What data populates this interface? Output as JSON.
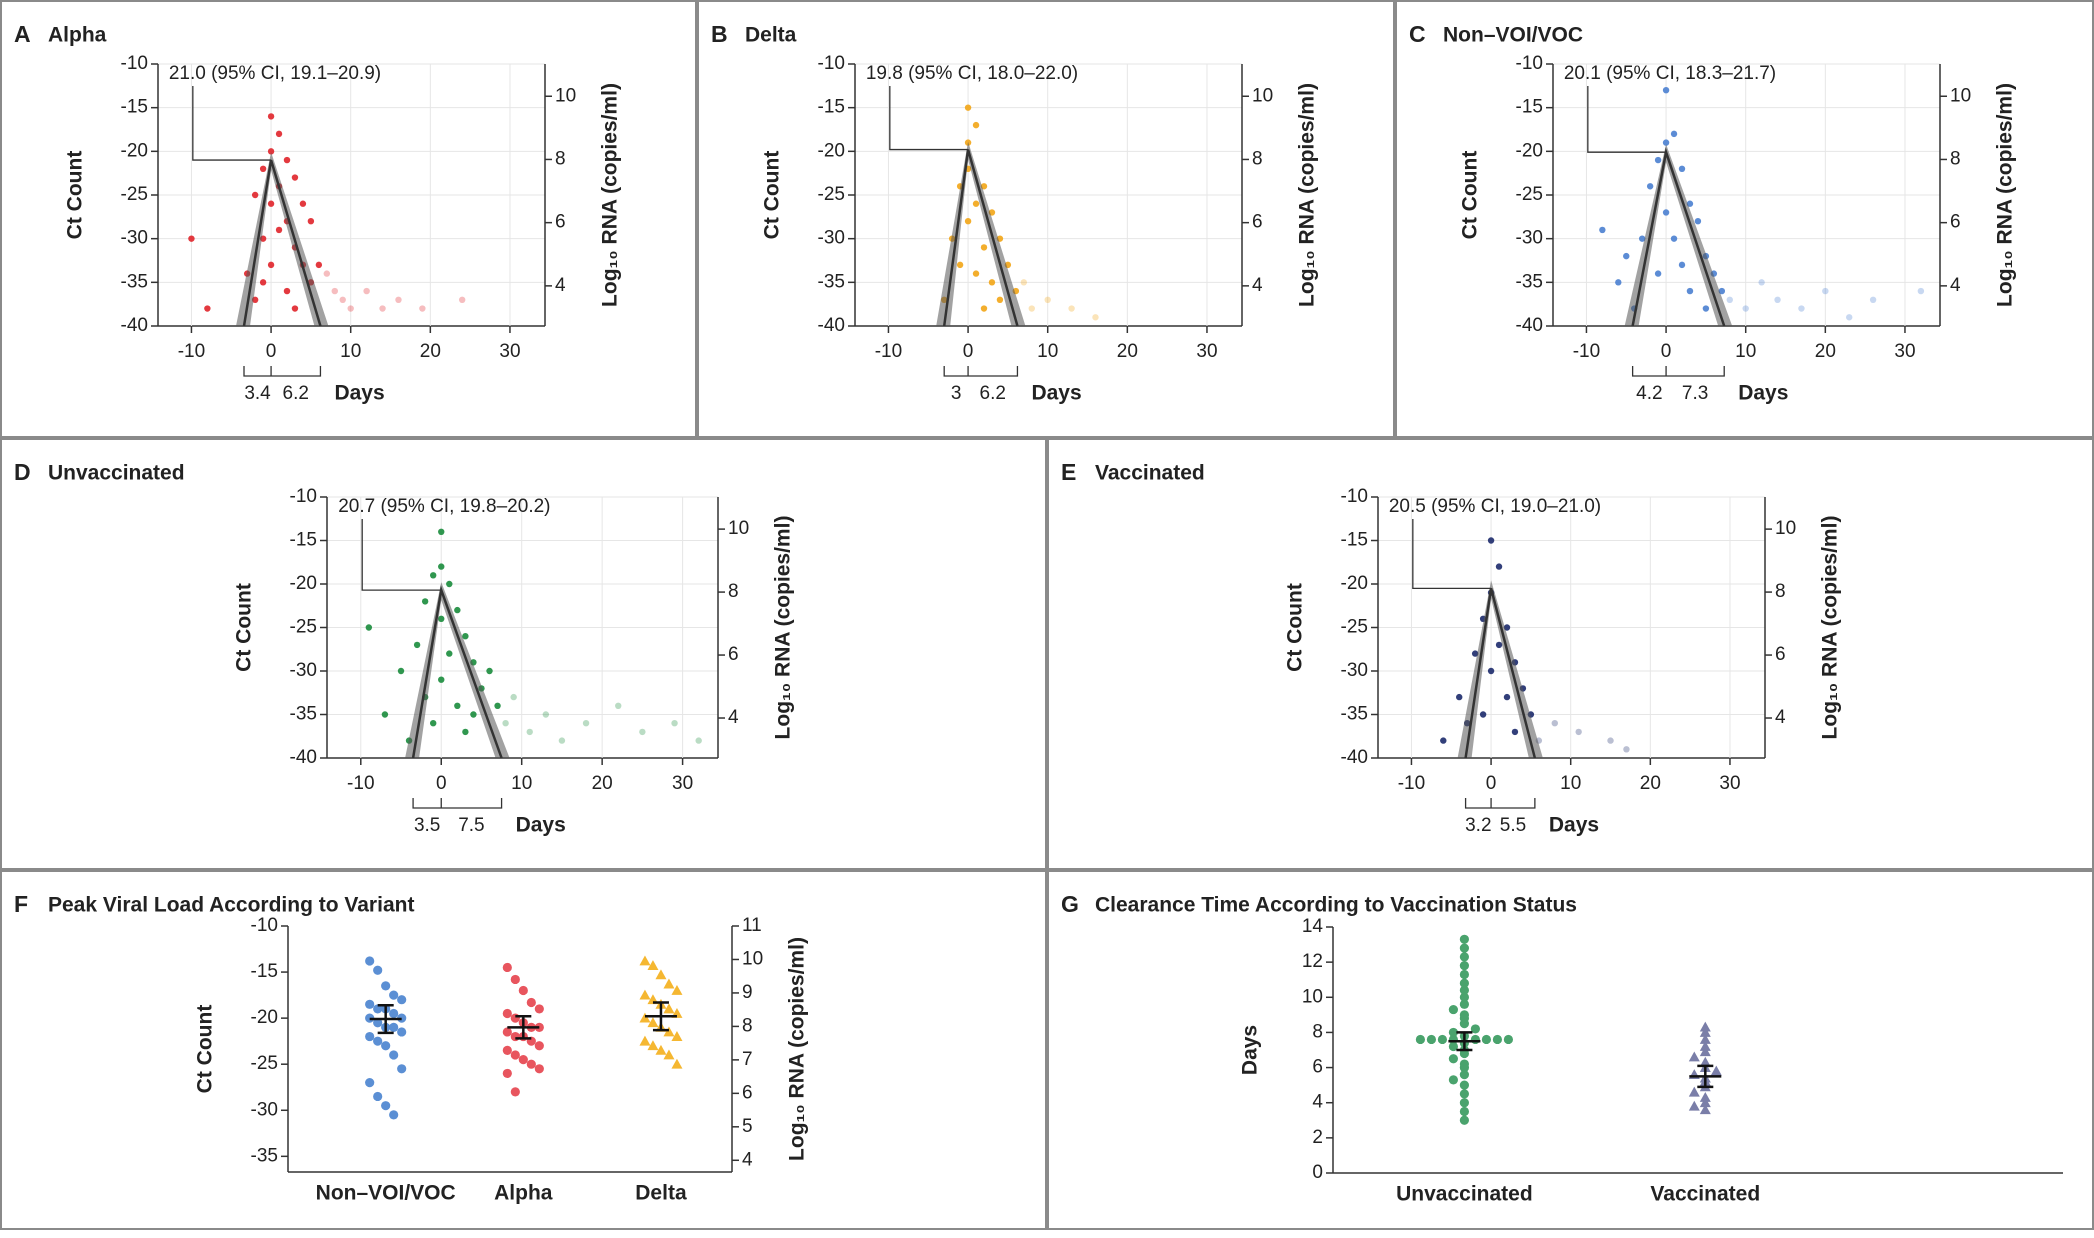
{
  "chart_data": [
    {
      "type": "scatter",
      "panel_label": "A",
      "title": "Alpha",
      "ylabel": "Ct Count",
      "y2label": "Log₁₀ RNA (copies/ml)",
      "xlabel": "Days",
      "annotation": "21.0 (95% CI, 19.1–20.9)",
      "peak_ct": -21.0,
      "proliferation_days": 3.4,
      "clearance_days": 6.2,
      "color": "#e0242a",
      "grid": true,
      "xlim": [
        -14.2,
        34.4
      ],
      "xticks": [
        -10,
        0,
        10,
        20,
        30
      ],
      "ylim": [
        -40,
        -10
      ],
      "yticks": [
        -10,
        -15,
        -20,
        -25,
        -30,
        -35,
        -40
      ],
      "y2lim": [
        2.73,
        11.02
      ],
      "y2ticks": [
        4,
        6,
        8,
        10
      ],
      "x": [
        -10,
        -8,
        -3,
        -2,
        -2,
        -1,
        -1,
        -1,
        0,
        0,
        0,
        0,
        1,
        1,
        1,
        2,
        2,
        2,
        3,
        3,
        3,
        4,
        4,
        5,
        5,
        6,
        7,
        8,
        9,
        10,
        12,
        14,
        16,
        19,
        24
      ],
      "y": [
        -30,
        -38,
        -34,
        -25,
        -37,
        -22,
        -30,
        -35,
        -16,
        -20,
        -26,
        -33,
        -18,
        -24,
        -29,
        -21,
        -28,
        -36,
        -23,
        -31,
        -38,
        -26,
        -33,
        -28,
        -35,
        -33,
        -34,
        -36,
        -37,
        -38,
        -36,
        -38,
        -37,
        -38,
        -37
      ]
    },
    {
      "type": "scatter",
      "panel_label": "B",
      "title": "Delta",
      "ylabel": "Ct Count",
      "y2label": "Log₁₀ RNA (copies/ml)",
      "xlabel": "Days",
      "annotation": "19.8 (95% CI, 18.0–22.0)",
      "peak_ct": -19.8,
      "proliferation_days": 3.0,
      "clearance_days": 6.2,
      "color": "#f2a516",
      "grid": true,
      "xlim": [
        -14.2,
        34.4
      ],
      "xticks": [
        -10,
        0,
        10,
        20,
        30
      ],
      "ylim": [
        -40,
        -10
      ],
      "yticks": [
        -10,
        -15,
        -20,
        -25,
        -30,
        -35,
        -40
      ],
      "y2lim": [
        2.73,
        11.02
      ],
      "y2ticks": [
        4,
        6,
        8,
        10
      ],
      "x": [
        -3,
        -2,
        -1,
        -1,
        0,
        0,
        0,
        0,
        1,
        1,
        1,
        2,
        2,
        2,
        3,
        3,
        4,
        4,
        5,
        6,
        7,
        8,
        10,
        13,
        16
      ],
      "y": [
        -37,
        -30,
        -24,
        -33,
        -15,
        -19,
        -22,
        -28,
        -17,
        -26,
        -34,
        -24,
        -31,
        -38,
        -27,
        -35,
        -30,
        -37,
        -33,
        -36,
        -35,
        -38,
        -37,
        -38,
        -39
      ]
    },
    {
      "type": "scatter",
      "panel_label": "C",
      "title": "Non–VOI/VOC",
      "ylabel": "Ct Count",
      "y2label": "Log₁₀ RNA (copies/ml)",
      "xlabel": "Days",
      "annotation": "20.1 (95% CI, 18.3–21.7)",
      "peak_ct": -20.1,
      "proliferation_days": 4.2,
      "clearance_days": 7.3,
      "color": "#4a7fd0",
      "grid": true,
      "xlim": [
        -14.2,
        34.4
      ],
      "xticks": [
        -10,
        0,
        10,
        20,
        30
      ],
      "ylim": [
        -40,
        -10
      ],
      "yticks": [
        -10,
        -15,
        -20,
        -25,
        -30,
        -35,
        -40
      ],
      "y2lim": [
        2.73,
        11.02
      ],
      "y2ticks": [
        4,
        6,
        8,
        10
      ],
      "x": [
        -8,
        -6,
        -5,
        -4,
        -3,
        -2,
        -1,
        -1,
        0,
        0,
        0,
        1,
        1,
        2,
        2,
        3,
        3,
        4,
        5,
        5,
        6,
        7,
        8,
        10,
        12,
        14,
        17,
        20,
        23,
        26,
        32
      ],
      "y": [
        -29,
        -35,
        -32,
        -38,
        -30,
        -24,
        -21,
        -34,
        -13,
        -19,
        -27,
        -18,
        -30,
        -22,
        -33,
        -26,
        -36,
        -28,
        -32,
        -38,
        -34,
        -36,
        -37,
        -38,
        -35,
        -37,
        -38,
        -36,
        -39,
        -37,
        -36
      ]
    },
    {
      "type": "scatter",
      "panel_label": "D",
      "title": "Unvaccinated",
      "ylabel": "Ct Count",
      "y2label": "Log₁₀ RNA (copies/ml)",
      "xlabel": "Days",
      "annotation": "20.7 (95% CI, 19.8–20.2)",
      "peak_ct": -20.7,
      "proliferation_days": 3.5,
      "clearance_days": 7.5,
      "color": "#1a8c3c",
      "grid": true,
      "xlim": [
        -14.2,
        34.4
      ],
      "xticks": [
        -10,
        0,
        10,
        20,
        30
      ],
      "ylim": [
        -40,
        -10
      ],
      "yticks": [
        -10,
        -15,
        -20,
        -25,
        -30,
        -35,
        -40
      ],
      "y2lim": [
        2.73,
        11.02
      ],
      "y2ticks": [
        4,
        6,
        8,
        10
      ],
      "x": [
        -9,
        -7,
        -5,
        -4,
        -3,
        -2,
        -2,
        -1,
        -1,
        0,
        0,
        0,
        0,
        1,
        1,
        2,
        2,
        3,
        3,
        4,
        4,
        5,
        6,
        7,
        8,
        9,
        11,
        13,
        15,
        18,
        22,
        25,
        29,
        32
      ],
      "y": [
        -25,
        -35,
        -30,
        -38,
        -27,
        -22,
        -33,
        -19,
        -36,
        -14,
        -18,
        -24,
        -31,
        -20,
        -28,
        -23,
        -34,
        -26,
        -37,
        -29,
        -35,
        -32,
        -30,
        -34,
        -36,
        -33,
        -37,
        -35,
        -38,
        -36,
        -34,
        -37,
        -36,
        -38
      ]
    },
    {
      "type": "scatter",
      "panel_label": "E",
      "title": "Vaccinated",
      "ylabel": "Ct Count",
      "y2label": "Log₁₀ RNA (copies/ml)",
      "xlabel": "Days",
      "annotation": "20.5 (95% CI, 19.0–21.0)",
      "peak_ct": -20.5,
      "proliferation_days": 3.2,
      "clearance_days": 5.5,
      "color": "#1c2a6b",
      "grid": true,
      "xlim": [
        -14.2,
        34.4
      ],
      "xticks": [
        -10,
        0,
        10,
        20,
        30
      ],
      "ylim": [
        -40,
        -10
      ],
      "yticks": [
        -10,
        -15,
        -20,
        -25,
        -30,
        -35,
        -40
      ],
      "y2lim": [
        2.73,
        11.02
      ],
      "y2ticks": [
        4,
        6,
        8,
        10
      ],
      "x": [
        -6,
        -4,
        -3,
        -2,
        -1,
        -1,
        0,
        0,
        0,
        1,
        1,
        2,
        2,
        3,
        3,
        4,
        5,
        6,
        8,
        11,
        15,
        17
      ],
      "y": [
        -38,
        -33,
        -36,
        -28,
        -24,
        -35,
        -15,
        -21,
        -30,
        -18,
        -27,
        -25,
        -33,
        -29,
        -37,
        -32,
        -35,
        -38,
        -36,
        -37,
        -38,
        -39
      ]
    },
    {
      "type": "strip",
      "panel_label": "F",
      "title": "Peak Viral Load According to Variant",
      "ylabel": "Ct Count",
      "y2label": "Log₁₀ RNA (copies/ml)",
      "categories": [
        "Non–VOI/VOC",
        "Alpha",
        "Delta"
      ],
      "colors": [
        "#5b8fd4",
        "#e8555e",
        "#f5b731"
      ],
      "markers": [
        "circle",
        "circle",
        "triangle"
      ],
      "ylim": [
        -36.7,
        -10
      ],
      "yticks": [
        -10,
        -15,
        -20,
        -25,
        -30,
        -35
      ],
      "y2lim": [
        3.65,
        11
      ],
      "y2ticks": [
        4,
        5,
        6,
        7,
        8,
        9,
        10,
        11
      ],
      "values": [
        [
          -13.8,
          -14.8,
          -16.5,
          -17.5,
          -18,
          -18.5,
          -19,
          -19,
          -19.5,
          -20,
          -20,
          -20.5,
          -21,
          -21,
          -21.5,
          -22,
          -22.5,
          -23,
          -24,
          -25.5,
          -27,
          -28.5,
          -29.5,
          -30.5
        ],
        [
          -14.5,
          -15.8,
          -17,
          -18.3,
          -19,
          -19.5,
          -20,
          -20.5,
          -21,
          -21,
          -21.5,
          -22,
          -22,
          -22.5,
          -23,
          -23.5,
          -24,
          -24.5,
          -25,
          -25.5,
          -26,
          -28
        ],
        [
          -13.8,
          -14.3,
          -15.3,
          -16.3,
          -17,
          -17.5,
          -18,
          -18.5,
          -19,
          -19.5,
          -20,
          -20.5,
          -21,
          -21.5,
          -22,
          -22.5,
          -23,
          -23.5,
          -24,
          -25
        ]
      ],
      "means": [
        -20.1,
        -21.0,
        -19.8
      ],
      "errors": [
        1.5,
        1.2,
        1.5
      ]
    },
    {
      "type": "swarm",
      "panel_label": "G",
      "title": "Clearance Time According to Vaccination Status",
      "ylabel": "Days",
      "categories": [
        "Unvaccinated",
        "Vaccinated"
      ],
      "colors": [
        "#4aa36d",
        "#7a7ea8"
      ],
      "markers": [
        "circle",
        "triangle"
      ],
      "ylim": [
        0,
        14
      ],
      "yticks": [
        0,
        2,
        4,
        6,
        8,
        10,
        12,
        14
      ],
      "values": [
        [
          3,
          3.5,
          4,
          4.5,
          5,
          5.3,
          5.6,
          6,
          6.2,
          6.5,
          6.8,
          7,
          7.2,
          7.4,
          7.6,
          7.6,
          7.6,
          7.6,
          7.6,
          7.6,
          7.6,
          7.6,
          7.8,
          8,
          8.2,
          8.5,
          8.8,
          9,
          9.3,
          9.6,
          10,
          10.4,
          10.8,
          11.3,
          11.8,
          12.3,
          12.8,
          13.3
        ],
        [
          3.6,
          3.8,
          4,
          4.3,
          4.6,
          4.9,
          5.2,
          5.4,
          5.6,
          5.8,
          6,
          6.3,
          6.6,
          6.9,
          7.2,
          7.6,
          8,
          8.3
        ]
      ],
      "means": [
        7.5,
        5.5
      ],
      "errors": [
        0.5,
        0.6
      ]
    }
  ]
}
